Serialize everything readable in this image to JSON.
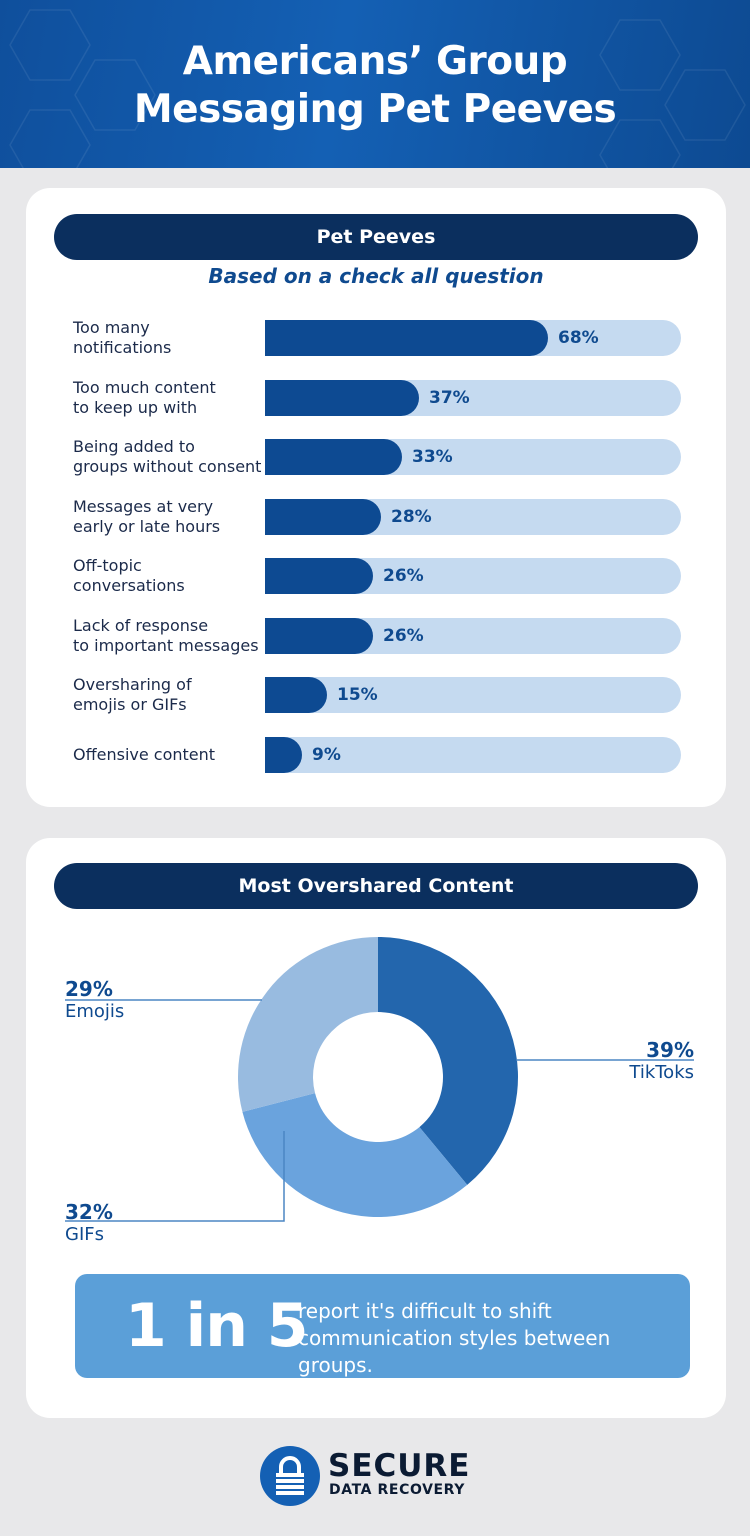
{
  "header": {
    "title_line1": "Americans’ Group",
    "title_line2": "Messaging Pet Peeves"
  },
  "colors": {
    "header_blue": "#1460b4",
    "dark_navy": "#0b2f5e",
    "bar_fill": "#0d4a92",
    "bar_track": "#c5daf0",
    "slice_tiktoks": "#2366ad",
    "slice_gifs": "#6aa3dd",
    "slice_emojis": "#98bbe0",
    "callout_bg": "#5b9fd8"
  },
  "chart_data": [
    {
      "type": "bar",
      "title": "Pet Peeves",
      "subtitle": "Based on a check all question",
      "categories": [
        "Too many\nnotifications",
        "Too much content\nto keep up with",
        "Being added to\ngroups without consent",
        "Messages at very\nearly or late hours",
        "Off-topic\nconversations",
        "Lack of response\nto important messages",
        "Oversharing of\nemojis or GIFs",
        "Offensive content"
      ],
      "values": [
        68,
        37,
        33,
        28,
        26,
        26,
        15,
        9
      ],
      "value_labels": [
        "68%",
        "37%",
        "33%",
        "28%",
        "26%",
        "26%",
        "15%",
        "9%"
      ],
      "ylim": [
        0,
        100
      ]
    },
    {
      "type": "pie",
      "title": "Most Overshared Content",
      "categories": [
        "TikToks",
        "GIFs",
        "Emojis"
      ],
      "values": [
        39,
        32,
        29
      ],
      "value_labels": [
        "39%",
        "32%",
        "29%"
      ],
      "colors": [
        "#2366ad",
        "#6aa3dd",
        "#98bbe0"
      ]
    }
  ],
  "callout": {
    "big": "1 in 5",
    "text": "report it's difficult to shift communication styles between groups."
  },
  "logo": {
    "word1": "SECURE",
    "word2": "DATA RECOVERY",
    "icon": "padlock-icon"
  }
}
